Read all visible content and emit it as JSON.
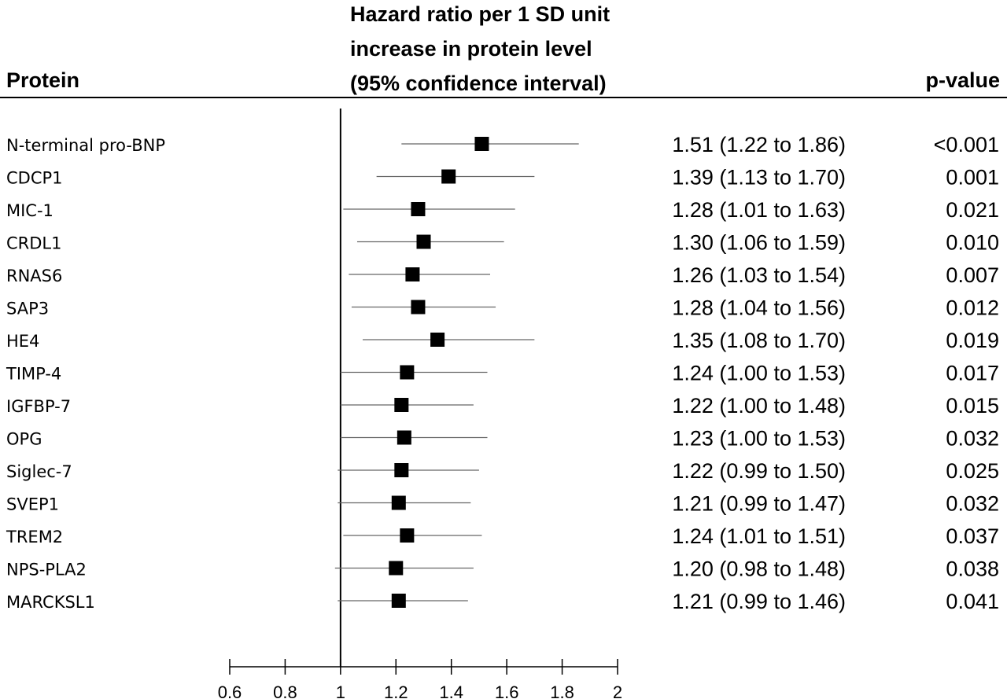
{
  "header": {
    "protein_col": "Protein",
    "hr_col_lines": [
      "Hazard ratio per 1 SD unit",
      "increase in protein level",
      "(95% confidence interval)"
    ],
    "p_col": "p-value"
  },
  "chart_data": {
    "type": "forest",
    "reference_line": 1,
    "xlim": [
      0.6,
      2
    ],
    "x_ticks": [
      0.6,
      0.8,
      1,
      1.2,
      1.4,
      1.6,
      1.8,
      2
    ],
    "x_tick_labels": [
      "0.6",
      "0.8",
      "1",
      "1.2",
      "1.4",
      "1.6",
      "1.8",
      "2"
    ],
    "rows": [
      {
        "protein": "N-terminal pro-BNP",
        "hr": 1.51,
        "lo": 1.22,
        "hi": 1.86,
        "ci_text": "1.51 (1.22 to 1.86)",
        "p": "<0.001"
      },
      {
        "protein": "CDCP1",
        "hr": 1.39,
        "lo": 1.13,
        "hi": 1.7,
        "ci_text": "1.39 (1.13 to 1.70)",
        "p": "0.001"
      },
      {
        "protein": "MIC-1",
        "hr": 1.28,
        "lo": 1.01,
        "hi": 1.63,
        "ci_text": "1.28 (1.01 to 1.63)",
        "p": "0.021"
      },
      {
        "protein": "CRDL1",
        "hr": 1.3,
        "lo": 1.06,
        "hi": 1.59,
        "ci_text": "1.30 (1.06 to 1.59)",
        "p": "0.010"
      },
      {
        "protein": "RNAS6",
        "hr": 1.26,
        "lo": 1.03,
        "hi": 1.54,
        "ci_text": "1.26 (1.03 to 1.54)",
        "p": "0.007"
      },
      {
        "protein": "SAP3",
        "hr": 1.28,
        "lo": 1.04,
        "hi": 1.56,
        "ci_text": "1.28 (1.04 to 1.56)",
        "p": "0.012"
      },
      {
        "protein": "HE4",
        "hr": 1.35,
        "lo": 1.08,
        "hi": 1.7,
        "ci_text": "1.35 (1.08 to 1.70)",
        "p": "0.019"
      },
      {
        "protein": "TIMP-4",
        "hr": 1.24,
        "lo": 1.0,
        "hi": 1.53,
        "ci_text": "1.24 (1.00 to 1.53)",
        "p": "0.017"
      },
      {
        "protein": "IGFBP-7",
        "hr": 1.22,
        "lo": 1.0,
        "hi": 1.48,
        "ci_text": "1.22 (1.00 to 1.48)",
        "p": "0.015"
      },
      {
        "protein": "OPG",
        "hr": 1.23,
        "lo": 1.0,
        "hi": 1.53,
        "ci_text": "1.23 (1.00 to 1.53)",
        "p": "0.032"
      },
      {
        "protein": "Siglec-7",
        "hr": 1.22,
        "lo": 0.99,
        "hi": 1.5,
        "ci_text": "1.22 (0.99 to 1.50)",
        "p": "0.025"
      },
      {
        "protein": "SVEP1",
        "hr": 1.21,
        "lo": 0.99,
        "hi": 1.47,
        "ci_text": "1.21 (0.99 to 1.47)",
        "p": "0.032"
      },
      {
        "protein": "TREM2",
        "hr": 1.24,
        "lo": 1.01,
        "hi": 1.51,
        "ci_text": "1.24 (1.01 to 1.51)",
        "p": "0.037"
      },
      {
        "protein": "NPS-PLA2",
        "hr": 1.2,
        "lo": 0.98,
        "hi": 1.48,
        "ci_text": "1.20 (0.98 to 1.48)",
        "p": "0.038"
      },
      {
        "protein": "MARCKSL1",
        "hr": 1.21,
        "lo": 0.99,
        "hi": 1.46,
        "ci_text": "1.21 (0.99 to 1.46)",
        "p": "0.041"
      }
    ]
  }
}
